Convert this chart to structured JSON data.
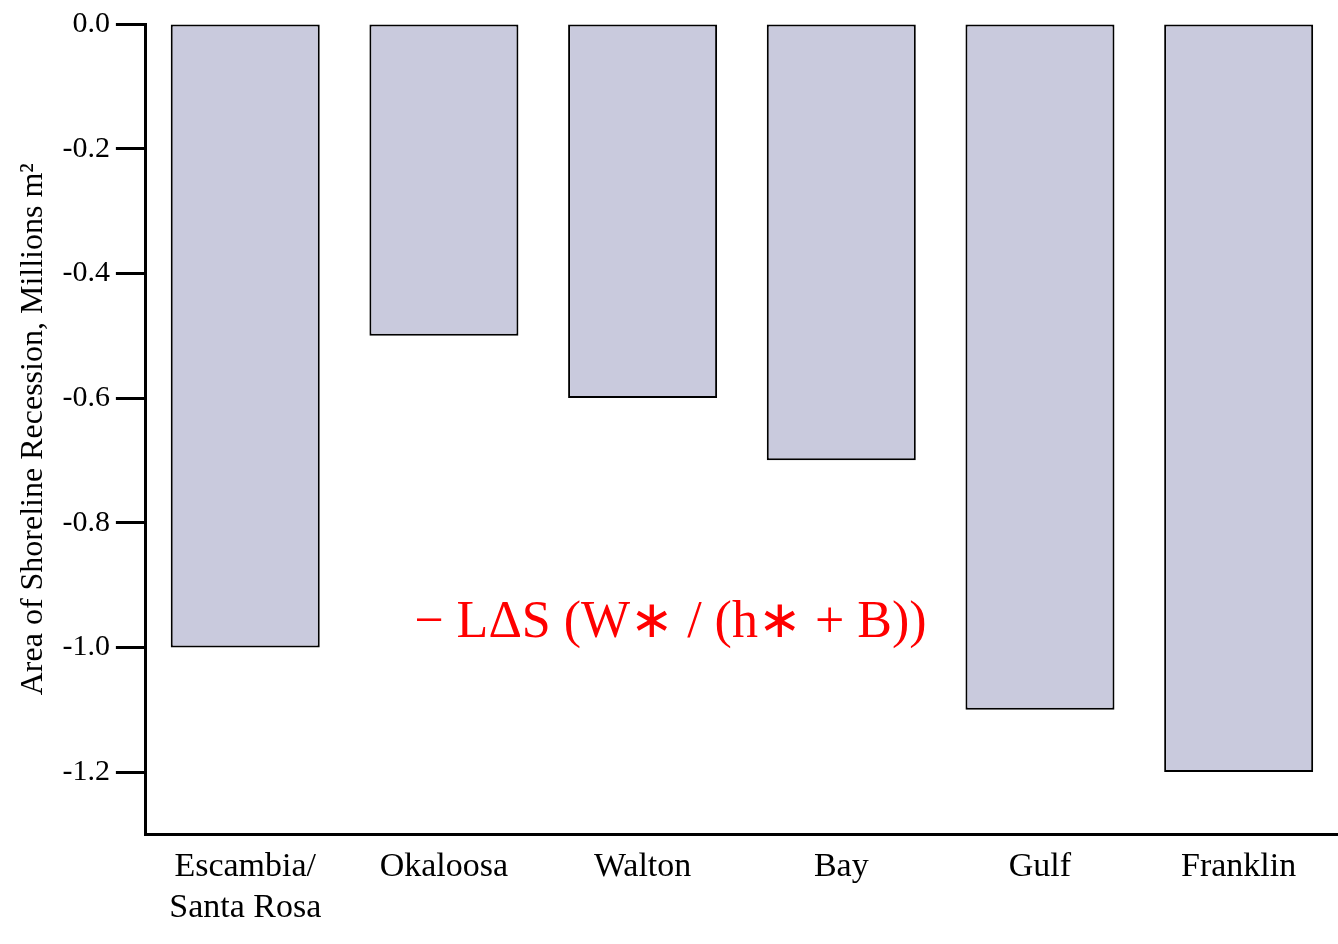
{
  "chart_data": {
    "type": "bar",
    "categories": [
      "Escambia/\nSanta Rosa",
      "Okaloosa",
      "Walton",
      "Bay",
      "Gulf",
      "Franklin"
    ],
    "values": [
      -1.0,
      -0.5,
      -0.6,
      -0.7,
      -1.1,
      -1.2
    ],
    "color": "#c9cadd",
    "ylabel": "Area of Shoreline Recession, Millions m²",
    "ylim": [
      -1.3,
      0
    ],
    "yticks": [
      {
        "value": 0,
        "label": "0.0"
      },
      -0.2,
      -0.4,
      -0.6,
      -0.8,
      {
        "value": -1.0,
        "label": "-1.0"
      },
      -1.2
    ],
    "annotations": [
      "− LΔS (W∗ / (h∗ + B))"
    ],
    "grid": false,
    "legend": false
  }
}
